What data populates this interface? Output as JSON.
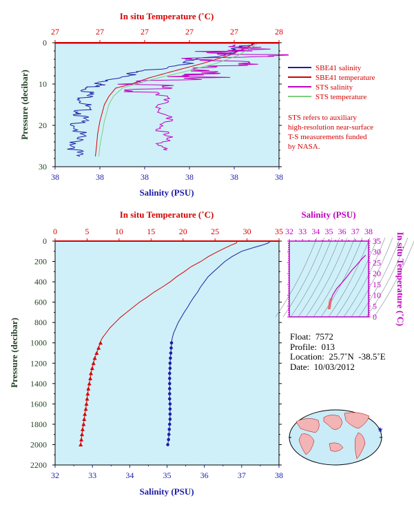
{
  "chart_data": [
    {
      "type": "line",
      "panel": "near-surface profile",
      "top_axis_label": "In situ Temperature (˚C)",
      "top_ticks": [
        "27",
        "27",
        "27",
        "27",
        "27",
        "28"
      ],
      "bottom_axis_label": "Salinity (PSU)",
      "bottom_ticks": [
        "38",
        "38",
        "38",
        "38",
        "38",
        "38"
      ],
      "ylabel": "Pressure (decibar)",
      "y_ticks": [
        "0",
        "10",
        "20",
        "30"
      ],
      "xlim": [
        0,
        1
      ],
      "ylim": [
        30,
        0
      ],
      "series": [
        {
          "name": "SBE41 salinity",
          "color": "#1c1ca8",
          "x": [
            0.9,
            0.86,
            0.75,
            0.6,
            0.4,
            0.3,
            0.22,
            0.18,
            0.16,
            0.15,
            0.14,
            0.13,
            0.12,
            0.115,
            0.11
          ],
          "y": [
            0,
            1,
            3,
            5,
            7,
            8.5,
            10,
            11,
            13,
            15,
            17,
            19,
            22,
            25,
            27.5
          ]
        },
        {
          "name": "SBE41 temperature",
          "color": "#d40000",
          "x": [
            0.9,
            0.86,
            0.78,
            0.66,
            0.52,
            0.42,
            0.34,
            0.27,
            0.24,
            0.22,
            0.21,
            0.2,
            0.19,
            0.185,
            0.18
          ],
          "y": [
            0,
            1,
            3,
            5,
            7,
            8.5,
            10,
            11,
            13,
            15,
            17,
            19,
            22,
            25,
            27.5
          ]
        },
        {
          "name": "STS salinity",
          "color": "#c000c0",
          "x": [
            0.93,
            0.85,
            0.97,
            0.8,
            0.9,
            0.66,
            0.8,
            0.55,
            0.52,
            0.5,
            0.5,
            0.51,
            0.5,
            0.51,
            0.5
          ],
          "y": [
            0.5,
            2,
            3,
            4,
            5.5,
            7,
            8,
            9,
            10.5,
            12,
            15,
            18,
            21,
            24,
            26
          ]
        },
        {
          "name": "STS temperature",
          "color": "#7ccf7c",
          "x": [
            0.91,
            0.88,
            0.82,
            0.72,
            0.58,
            0.46,
            0.36,
            0.3,
            0.26,
            0.24,
            0.23,
            0.22,
            0.21,
            0.2,
            0.195
          ],
          "y": [
            0,
            1,
            3,
            5,
            7,
            8.5,
            10,
            11,
            13,
            15,
            17,
            19,
            22,
            25,
            27.5
          ]
        }
      ],
      "note": [
        "STS refers to auxiliary",
        "high-resolution near-surface",
        "T-S measurements funded",
        "by NASA."
      ]
    },
    {
      "type": "line",
      "panel": "full profile",
      "top_axis_label": "In situ Temperature (˚C)",
      "top_ticks": [
        "0",
        "5",
        "10",
        "15",
        "20",
        "25",
        "30",
        "35"
      ],
      "temp_range": [
        0,
        35
      ],
      "bottom_axis_label": "Salinity (PSU)",
      "bottom_ticks": [
        "32",
        "33",
        "34",
        "35",
        "36",
        "37",
        "38"
      ],
      "sal_range": [
        32,
        38
      ],
      "ylabel": "Pressure (decibar)",
      "y_ticks": [
        "0",
        "200",
        "400",
        "600",
        "800",
        "1000",
        "1200",
        "1400",
        "1600",
        "1800",
        "2000",
        "2200"
      ],
      "ylim": [
        2200,
        0
      ],
      "series": [
        {
          "name": "temperature",
          "color": "#d40000",
          "pressure": [
            0,
            20,
            40,
            60,
            100,
            150,
            200,
            250,
            300,
            350,
            400,
            450,
            500,
            550,
            600,
            650,
            700,
            750,
            800,
            850,
            900,
            950,
            1000
          ],
          "temperature": [
            28.5,
            28.3,
            27.5,
            26.8,
            25.5,
            24.0,
            22.8,
            21.3,
            20.2,
            19.0,
            18.0,
            16.8,
            15.5,
            14.4,
            13.2,
            12.2,
            11.2,
            10.2,
            9.4,
            8.6,
            8.0,
            7.4,
            7.0
          ]
        },
        {
          "name": "salinity",
          "color": "#1c1ca8",
          "pressure": [
            0,
            20,
            40,
            60,
            100,
            150,
            200,
            250,
            300,
            350,
            400,
            450,
            500,
            550,
            600,
            650,
            700,
            750,
            800,
            850,
            900,
            950,
            1000
          ],
          "salinity": [
            37.78,
            37.7,
            37.55,
            37.35,
            37.0,
            36.75,
            36.55,
            36.4,
            36.25,
            36.1,
            36.0,
            35.9,
            35.82,
            35.72,
            35.63,
            35.55,
            35.46,
            35.38,
            35.3,
            35.24,
            35.18,
            35.14,
            35.12
          ]
        },
        {
          "name": "temperature (discrete)",
          "color": "#d40000",
          "marker": "triangle",
          "pressure": [
            1000,
            1050,
            1100,
            1150,
            1200,
            1250,
            1300,
            1350,
            1400,
            1450,
            1500,
            1550,
            1600,
            1650,
            1700,
            1750,
            1800,
            1850,
            1900,
            1950,
            2000
          ],
          "temperature": [
            7.1,
            6.8,
            6.5,
            6.2,
            6.0,
            5.8,
            5.6,
            5.5,
            5.35,
            5.2,
            5.1,
            5.0,
            4.9,
            4.8,
            4.65,
            4.55,
            4.45,
            4.3,
            4.2,
            4.1,
            4.0
          ]
        },
        {
          "name": "salinity (discrete)",
          "color": "#1c1ca8",
          "marker": "circle",
          "pressure": [
            1000,
            1050,
            1100,
            1150,
            1200,
            1250,
            1300,
            1350,
            1400,
            1450,
            1500,
            1550,
            1600,
            1650,
            1700,
            1750,
            1800,
            1850,
            1900,
            1950,
            2000
          ],
          "salinity": [
            35.12,
            35.11,
            35.1,
            35.09,
            35.08,
            35.08,
            35.07,
            35.07,
            35.07,
            35.07,
            35.07,
            35.07,
            35.08,
            35.08,
            35.08,
            35.08,
            35.07,
            35.06,
            35.05,
            35.04,
            35.02
          ]
        }
      ]
    },
    {
      "type": "line",
      "panel": "T-S diagram",
      "top_axis_label": "Salinity (PSU)",
      "top_ticks": [
        "32",
        "33",
        "34",
        "35",
        "36",
        "37",
        "38"
      ],
      "right_axis_label": "In situ Temperature (˚C)",
      "right_ticks": [
        "0",
        "5",
        "10",
        "15",
        "20",
        "25",
        "30",
        "35"
      ],
      "xlim": [
        32,
        38
      ],
      "ylim": [
        0,
        35
      ],
      "series": [
        {
          "name": "T-S curve",
          "color": "#c000c0",
          "salinity": [
            37.78,
            37.5,
            37.1,
            36.7,
            36.3,
            35.95,
            35.6,
            35.3,
            35.15,
            35.1,
            35.07,
            35.05,
            35.02
          ],
          "temperature": [
            28.5,
            26.8,
            24.0,
            21.3,
            18.0,
            15.5,
            13.2,
            10.2,
            8.0,
            7.0,
            6.0,
            5.0,
            4.0
          ]
        }
      ]
    }
  ],
  "legend": [
    {
      "label": "SBE41 salinity",
      "color": "#1c1ca8"
    },
    {
      "label": "SBE41 temperature",
      "color": "#d40000"
    },
    {
      "label": "STS salinity",
      "color": "#c000c0"
    },
    {
      "label": "STS temperature",
      "color": "#7ccf7c"
    }
  ],
  "info": {
    "float": "Float:  7572",
    "profile": "Profile:  013",
    "location": "Location:  25.7˚N  -38.5˚E",
    "date": "Date:  10/03/2012"
  }
}
